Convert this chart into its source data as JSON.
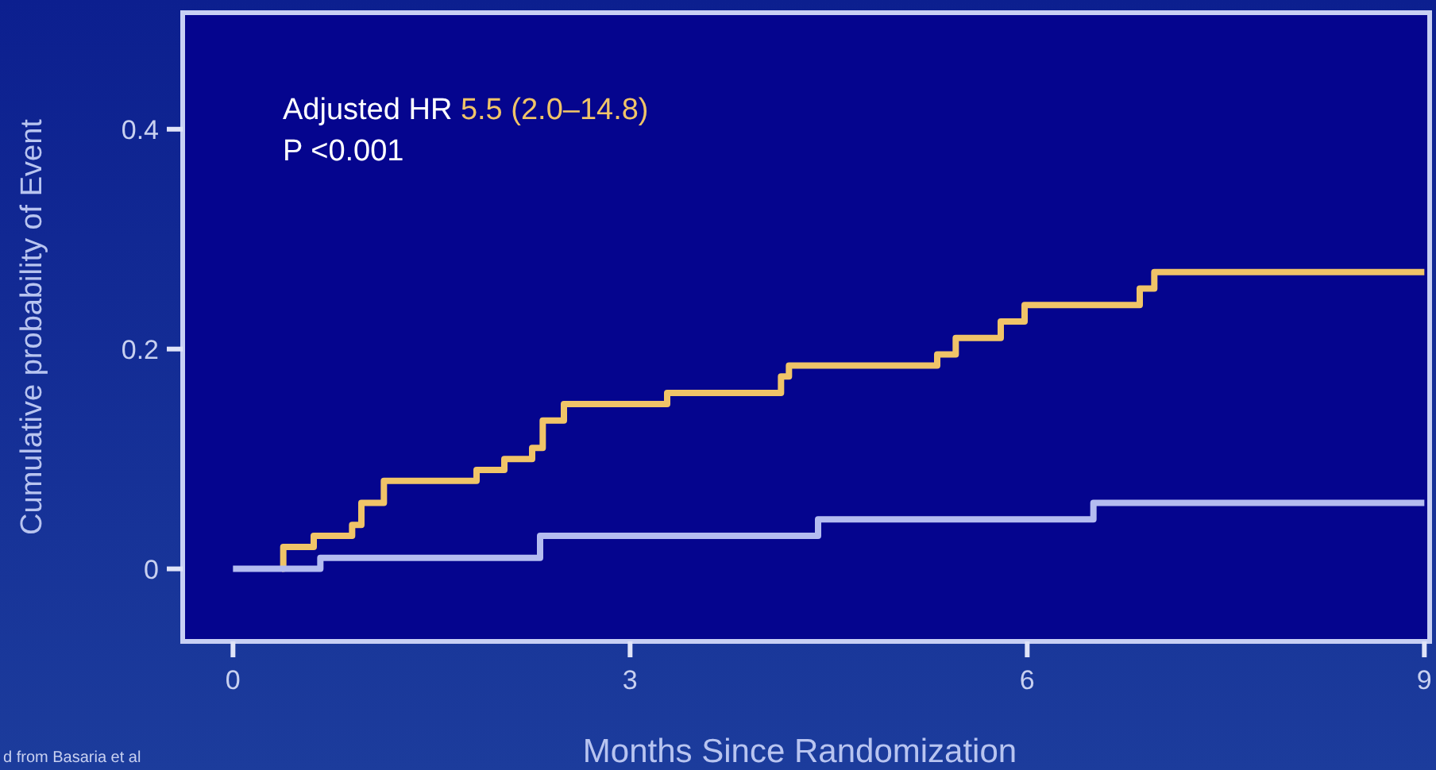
{
  "chart_data": {
    "type": "step",
    "xlabel": "Months Since Randomization",
    "ylabel": "Cumulative probability of Event",
    "annotations": [
      "Adjusted HR 5.5 (2.0–14.8)",
      "P <0.001",
      "d from Basaria et al"
    ],
    "xlim": [
      -0.38,
      9.04
    ],
    "ylim": [
      -0.066,
      0.506
    ],
    "xticks": [
      0,
      3,
      6,
      9
    ],
    "yticks": [
      0,
      0.2,
      0.4
    ],
    "grid": false,
    "line_style": "solid",
    "series": [
      {
        "color": "#f0c468",
        "x": [
          0.37,
          0.38,
          0.61,
          0.9,
          0.97,
          1.14,
          1.84,
          2.05,
          2.26,
          2.34,
          2.5,
          3.28,
          4.14,
          4.2,
          5.32,
          5.46,
          5.8,
          5.98,
          6.85,
          6.96,
          9
        ],
        "values": [
          0,
          0.02,
          0.03,
          0.04,
          0.06,
          0.08,
          0.09,
          0.1,
          0.11,
          0.135,
          0.15,
          0.16,
          0.175,
          0.185,
          0.195,
          0.21,
          0.225,
          0.24,
          0.255,
          0.27,
          0.27
        ]
      },
      {
        "color": "#b4bcf0",
        "x": [
          0,
          0.66,
          2.32,
          4.42,
          6.5,
          9
        ],
        "values": [
          0,
          0.01,
          0.03,
          0.045,
          0.06,
          0.06
        ]
      }
    ]
  }
}
